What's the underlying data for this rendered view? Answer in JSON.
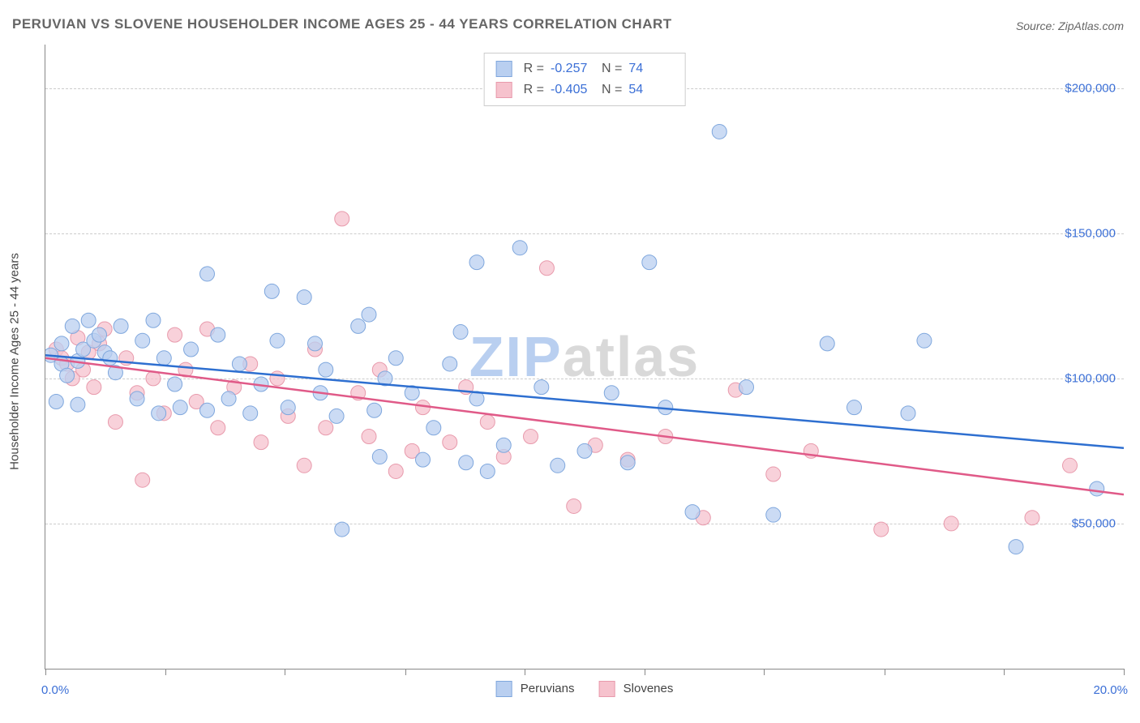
{
  "title": "PERUVIAN VS SLOVENE HOUSEHOLDER INCOME AGES 25 - 44 YEARS CORRELATION CHART",
  "source": "Source: ZipAtlas.com",
  "y_axis_label": "Householder Income Ages 25 - 44 years",
  "watermark_a": "ZIP",
  "watermark_b": "atlas",
  "watermark_color_a": "#b9cff0",
  "watermark_color_b": "#d9d9d9",
  "chart": {
    "type": "scatter",
    "xlim": [
      0,
      20
    ],
    "ylim": [
      0,
      215000
    ],
    "x_ticks": [
      0,
      2.22,
      4.44,
      6.67,
      8.89,
      11.11,
      13.33,
      15.56,
      17.78,
      20
    ],
    "x_tick_labels_shown": {
      "0": "0.0%",
      "20": "20.0%"
    },
    "y_gridlines": [
      50000,
      100000,
      150000,
      200000
    ],
    "y_tick_labels": {
      "50000": "$50,000",
      "100000": "$100,000",
      "150000": "$150,000",
      "200000": "$200,000"
    },
    "grid_color": "#cccccc",
    "axis_color": "#888888",
    "background_color": "#ffffff",
    "tick_label_color": "#3b6fd6",
    "tick_label_fontsize": 15,
    "title_fontsize": 17,
    "title_color": "#666666",
    "series": [
      {
        "name": "Peruvians",
        "fill": "#b9cff0",
        "stroke": "#7fa7dd",
        "line_color": "#2e6fd0",
        "line": {
          "x1": 0,
          "y1": 108000,
          "x2": 20,
          "y2": 76000
        },
        "R": "-0.257",
        "N": "74",
        "marker_radius": 9,
        "marker_opacity": 0.75,
        "points": [
          [
            0.1,
            108000
          ],
          [
            0.2,
            92000
          ],
          [
            0.3,
            112000
          ],
          [
            0.3,
            105000
          ],
          [
            0.4,
            101000
          ],
          [
            0.5,
            118000
          ],
          [
            0.6,
            106000
          ],
          [
            0.6,
            91000
          ],
          [
            0.7,
            110000
          ],
          [
            0.8,
            120000
          ],
          [
            0.9,
            113000
          ],
          [
            1.0,
            115000
          ],
          [
            1.1,
            109000
          ],
          [
            1.2,
            107000
          ],
          [
            1.3,
            102000
          ],
          [
            1.4,
            118000
          ],
          [
            1.7,
            93000
          ],
          [
            1.8,
            113000
          ],
          [
            2.0,
            120000
          ],
          [
            2.1,
            88000
          ],
          [
            2.2,
            107000
          ],
          [
            2.4,
            98000
          ],
          [
            2.5,
            90000
          ],
          [
            2.7,
            110000
          ],
          [
            3.0,
            136000
          ],
          [
            3.0,
            89000
          ],
          [
            3.2,
            115000
          ],
          [
            3.4,
            93000
          ],
          [
            3.6,
            105000
          ],
          [
            3.8,
            88000
          ],
          [
            4.0,
            98000
          ],
          [
            4.2,
            130000
          ],
          [
            4.3,
            113000
          ],
          [
            4.5,
            90000
          ],
          [
            4.8,
            128000
          ],
          [
            5.0,
            112000
          ],
          [
            5.1,
            95000
          ],
          [
            5.2,
            103000
          ],
          [
            5.4,
            87000
          ],
          [
            5.5,
            48000
          ],
          [
            5.8,
            118000
          ],
          [
            6.0,
            122000
          ],
          [
            6.1,
            89000
          ],
          [
            6.2,
            73000
          ],
          [
            6.3,
            100000
          ],
          [
            6.5,
            107000
          ],
          [
            6.8,
            95000
          ],
          [
            7.0,
            72000
          ],
          [
            7.2,
            83000
          ],
          [
            7.5,
            105000
          ],
          [
            7.7,
            116000
          ],
          [
            7.8,
            71000
          ],
          [
            8.0,
            140000
          ],
          [
            8.0,
            93000
          ],
          [
            8.2,
            68000
          ],
          [
            8.5,
            77000
          ],
          [
            8.8,
            145000
          ],
          [
            9.2,
            97000
          ],
          [
            9.5,
            70000
          ],
          [
            10.0,
            75000
          ],
          [
            10.5,
            95000
          ],
          [
            10.8,
            71000
          ],
          [
            11.2,
            140000
          ],
          [
            11.5,
            90000
          ],
          [
            12.0,
            54000
          ],
          [
            12.5,
            185000
          ],
          [
            13.0,
            97000
          ],
          [
            13.5,
            53000
          ],
          [
            14.5,
            112000
          ],
          [
            15.0,
            90000
          ],
          [
            16.0,
            88000
          ],
          [
            16.3,
            113000
          ],
          [
            18.0,
            42000
          ],
          [
            19.5,
            62000
          ]
        ]
      },
      {
        "name": "Slovenes",
        "fill": "#f6c2cd",
        "stroke": "#e89aac",
        "line_color": "#e05a88",
        "line": {
          "x1": 0,
          "y1": 107000,
          "x2": 20,
          "y2": 60000
        },
        "R": "-0.405",
        "N": "54",
        "marker_radius": 9,
        "marker_opacity": 0.75,
        "points": [
          [
            0.2,
            110000
          ],
          [
            0.3,
            107000
          ],
          [
            0.4,
            105000
          ],
          [
            0.5,
            100000
          ],
          [
            0.6,
            114000
          ],
          [
            0.7,
            103000
          ],
          [
            0.8,
            109000
          ],
          [
            0.9,
            97000
          ],
          [
            1.0,
            112000
          ],
          [
            1.1,
            117000
          ],
          [
            1.3,
            85000
          ],
          [
            1.5,
            107000
          ],
          [
            1.7,
            95000
          ],
          [
            1.8,
            65000
          ],
          [
            2.0,
            100000
          ],
          [
            2.2,
            88000
          ],
          [
            2.4,
            115000
          ],
          [
            2.6,
            103000
          ],
          [
            2.8,
            92000
          ],
          [
            3.0,
            117000
          ],
          [
            3.2,
            83000
          ],
          [
            3.5,
            97000
          ],
          [
            3.8,
            105000
          ],
          [
            4.0,
            78000
          ],
          [
            4.3,
            100000
          ],
          [
            4.5,
            87000
          ],
          [
            4.8,
            70000
          ],
          [
            5.0,
            110000
          ],
          [
            5.2,
            83000
          ],
          [
            5.5,
            155000
          ],
          [
            5.8,
            95000
          ],
          [
            6.0,
            80000
          ],
          [
            6.2,
            103000
          ],
          [
            6.5,
            68000
          ],
          [
            6.8,
            75000
          ],
          [
            7.0,
            90000
          ],
          [
            7.5,
            78000
          ],
          [
            7.8,
            97000
          ],
          [
            8.2,
            85000
          ],
          [
            8.5,
            73000
          ],
          [
            9.0,
            80000
          ],
          [
            9.3,
            138000
          ],
          [
            9.8,
            56000
          ],
          [
            10.2,
            77000
          ],
          [
            10.8,
            72000
          ],
          [
            11.5,
            80000
          ],
          [
            12.2,
            52000
          ],
          [
            12.8,
            96000
          ],
          [
            13.5,
            67000
          ],
          [
            14.2,
            75000
          ],
          [
            15.5,
            48000
          ],
          [
            16.8,
            50000
          ],
          [
            18.3,
            52000
          ],
          [
            19.0,
            70000
          ]
        ]
      }
    ]
  },
  "legend_bottom": [
    {
      "label": "Peruvians",
      "fill": "#b9cff0",
      "stroke": "#7fa7dd"
    },
    {
      "label": "Slovenes",
      "fill": "#f6c2cd",
      "stroke": "#e89aac"
    }
  ]
}
